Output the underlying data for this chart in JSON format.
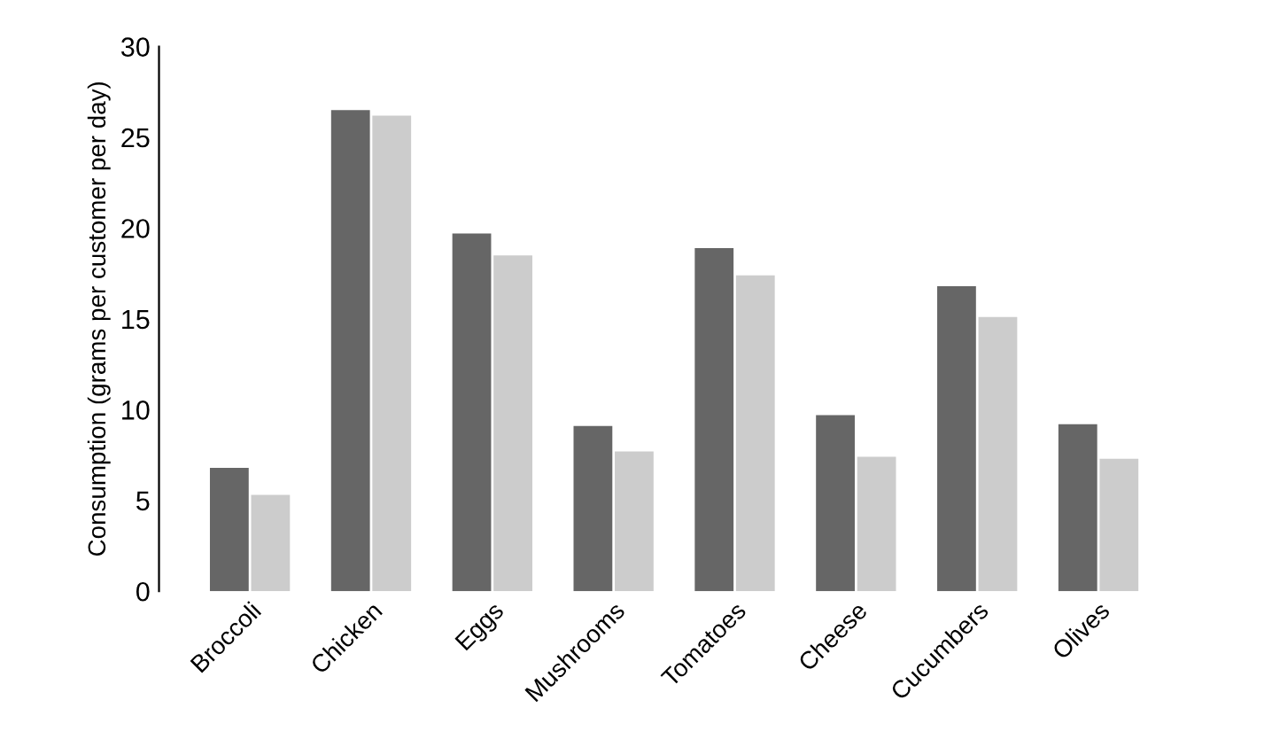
{
  "chart_data": {
    "type": "bar",
    "ylabel": "Consumption (grams per customer per day)",
    "categories": [
      "Broccoli",
      "Chicken",
      "Eggs",
      "Mushrooms",
      "Tomatoes",
      "Cheese",
      "Cucumbers",
      "Olives"
    ],
    "series": [
      {
        "color": "#666666",
        "values": [
          6.8,
          26.5,
          19.7,
          9.1,
          18.9,
          9.7,
          16.8,
          9.2
        ]
      },
      {
        "color": "#cccccc",
        "values": [
          5.3,
          26.2,
          18.5,
          7.7,
          17.4,
          7.4,
          15.1,
          7.3
        ]
      }
    ],
    "ylim": [
      0,
      30
    ],
    "yticks": [
      0,
      5,
      10,
      15,
      20,
      25,
      30
    ],
    "grid": false,
    "legend": false
  }
}
